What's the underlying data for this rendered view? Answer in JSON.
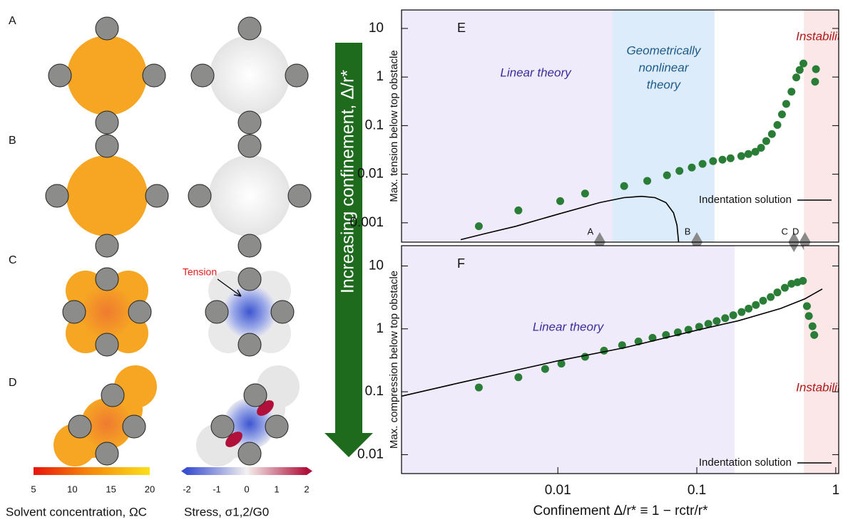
{
  "panels": {
    "labels": [
      "A",
      "B",
      "C",
      "D"
    ],
    "annotation": "Tension",
    "arrow_label": "Increasing confinement, Δ/r*",
    "colorbars": [
      {
        "label": "Solvent concentration, ΩC",
        "ticks": [
          5,
          10,
          15,
          20
        ]
      },
      {
        "label": "Stress, σ1,2/G0",
        "ticks": [
          -2,
          -1,
          0,
          1,
          2
        ]
      }
    ]
  },
  "chart_data": [
    {
      "type": "scatter",
      "panel_label": "E",
      "ylabel": "Max. tension below top obstacle",
      "log_x": true,
      "log_y": true,
      "xlim": [
        0.00075,
        1.05
      ],
      "ylim": [
        0.0004,
        24
      ],
      "yticks": [
        0.001,
        0.01,
        0.1,
        1,
        10
      ],
      "legend": "lower right",
      "regions": [
        {
          "label": [
            "Linear theory"
          ],
          "from": 0.00075,
          "to": 0.0248,
          "color": "#efebfa",
          "text_color": "#3b2d9a"
        },
        {
          "label": [
            "Geometrically",
            "nonlinear",
            "theory"
          ],
          "from": 0.0248,
          "to": 0.134,
          "color": "#dcecfa",
          "text_color": "#1d5a8a"
        },
        {
          "label": [
            "Instability"
          ],
          "from": 0.59,
          "to": 1.05,
          "color": "#fbe7e7",
          "text_color": "#b01818"
        }
      ],
      "markers": {
        "labels": [
          "A",
          "B",
          "C",
          "D"
        ],
        "x": [
          0.02,
          0.1,
          0.5,
          0.6
        ],
        "color": "#8a8a8a"
      },
      "series": [
        {
          "style": "dots",
          "color": "#2a7d36",
          "x": [
            0.0027,
            0.0052,
            0.0104,
            0.0157,
            0.03,
            0.044,
            0.061,
            0.075,
            0.092,
            0.11,
            0.131,
            0.153,
            0.175,
            0.209,
            0.235,
            0.264,
            0.29,
            0.316,
            0.347,
            0.38,
            0.41,
            0.44,
            0.48,
            0.52,
            0.55,
            0.585,
            0.71,
            0.72
          ],
          "values": [
            0.00085,
            0.0018,
            0.0028,
            0.004,
            0.0057,
            0.0073,
            0.0095,
            0.0117,
            0.0137,
            0.0163,
            0.0186,
            0.0199,
            0.0213,
            0.0236,
            0.026,
            0.029,
            0.035,
            0.048,
            0.067,
            0.103,
            0.17,
            0.28,
            0.5,
            0.98,
            1.4,
            1.9,
            0.8,
            1.45
          ]
        },
        {
          "style": "line",
          "name": "Indentation solution",
          "color": "#000000",
          "x": [
            0.002,
            0.003,
            0.005,
            0.01,
            0.02,
            0.03,
            0.04,
            0.05,
            0.06,
            0.068,
            0.072,
            0.074
          ],
          "values": [
            0.00045,
            0.0006,
            0.00085,
            0.0015,
            0.0026,
            0.0033,
            0.0035,
            0.0033,
            0.0026,
            0.0016,
            0.0009,
            0.0004
          ]
        }
      ]
    },
    {
      "type": "scatter",
      "panel_label": "F",
      "ylabel": "Max. compression below top obstacle",
      "xlabel": "Confinement Δ/r* ≡ 1 − rctr/r*",
      "log_x": true,
      "log_y": true,
      "xlim": [
        0.00075,
        1.05
      ],
      "ylim": [
        0.005,
        21
      ],
      "xticks": [
        0.01,
        0.1,
        1
      ],
      "yticks": [
        0.01,
        0.1,
        1,
        10
      ],
      "legend": "lower right",
      "regions": [
        {
          "label": [
            "Linear theory"
          ],
          "from": 0.00075,
          "to": 0.187,
          "color": "#efebfa",
          "text_color": "#3b2d9a"
        },
        {
          "label": [
            "Instability"
          ],
          "from": 0.59,
          "to": 1.05,
          "color": "#fbe7e7",
          "text_color": "#b01818"
        }
      ],
      "series": [
        {
          "style": "dots",
          "color": "#2a7d36",
          "x": [
            0.0027,
            0.0052,
            0.0081,
            0.0106,
            0.0157,
            0.0215,
            0.029,
            0.038,
            0.048,
            0.06,
            0.073,
            0.087,
            0.104,
            0.121,
            0.139,
            0.16,
            0.183,
            0.21,
            0.236,
            0.266,
            0.3,
            0.34,
            0.38,
            0.43,
            0.48,
            0.53,
            0.58,
            0.62,
            0.64,
            0.68,
            0.7
          ],
          "values": [
            0.117,
            0.17,
            0.23,
            0.28,
            0.36,
            0.45,
            0.55,
            0.63,
            0.72,
            0.8,
            0.88,
            0.97,
            1.08,
            1.2,
            1.33,
            1.48,
            1.65,
            1.85,
            2.1,
            2.4,
            2.8,
            3.2,
            3.8,
            4.5,
            5.2,
            5.5,
            5.8,
            2.3,
            1.6,
            1.1,
            0.8
          ]
        },
        {
          "style": "line",
          "name": "Indentation solution",
          "color": "#000000",
          "x": [
            0.00075,
            0.002,
            0.005,
            0.01,
            0.03,
            0.1,
            0.2,
            0.4,
            0.6,
            0.8
          ],
          "values": [
            0.085,
            0.14,
            0.22,
            0.31,
            0.5,
            0.95,
            1.35,
            2.1,
            3.0,
            4.3
          ]
        }
      ]
    }
  ]
}
